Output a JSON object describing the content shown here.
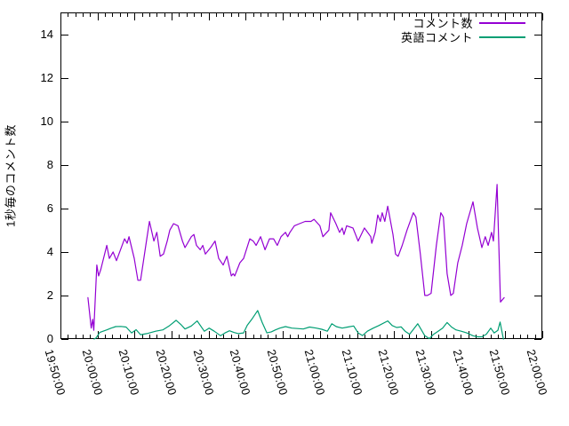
{
  "chart_data": {
    "type": "line",
    "title": "",
    "xlabel": "",
    "ylabel": "1秒毎のコメント数",
    "background": "#ffffff",
    "axis_color": "#000000",
    "grid": false,
    "legend_position": "top-right-inside",
    "x_unit": "minutes_after_19:50:00",
    "x_range_minutes": [
      0,
      130
    ],
    "x_major_step_minutes": 10,
    "x_minor_step_minutes": 2,
    "x_tick_labels": [
      "19:50:00",
      "20:00:00",
      "20:10:00",
      "20:20:00",
      "20:30:00",
      "20:40:00",
      "20:50:00",
      "21:00:00",
      "21:10:00",
      "21:20:00",
      "21:30:00",
      "21:40:00",
      "21:50:00",
      "22:00:00"
    ],
    "ylim": [
      0,
      15
    ],
    "y_ticks": [
      0,
      2,
      4,
      6,
      8,
      10,
      12,
      14
    ],
    "series": [
      {
        "name": "コメント数",
        "color": "#9400d3",
        "points": [
          [
            7.4,
            1.9
          ],
          [
            8.3,
            0.5
          ],
          [
            8.7,
            0.9
          ],
          [
            9.0,
            0.4
          ],
          [
            9.8,
            3.4
          ],
          [
            10.3,
            2.9
          ],
          [
            10.9,
            3.2
          ],
          [
            12.5,
            4.3
          ],
          [
            13.2,
            3.7
          ],
          [
            14.2,
            4.0
          ],
          [
            15.1,
            3.6
          ],
          [
            17.3,
            4.6
          ],
          [
            18.0,
            4.4
          ],
          [
            18.5,
            4.7
          ],
          [
            19.9,
            3.7
          ],
          [
            20.9,
            2.7
          ],
          [
            21.6,
            2.7
          ],
          [
            23.3,
            4.6
          ],
          [
            24.0,
            5.4
          ],
          [
            25.2,
            4.5
          ],
          [
            26.0,
            4.9
          ],
          [
            26.9,
            3.8
          ],
          [
            27.8,
            3.9
          ],
          [
            28.8,
            4.5
          ],
          [
            29.5,
            5.0
          ],
          [
            30.5,
            5.3
          ],
          [
            31.7,
            5.2
          ],
          [
            32.9,
            4.5
          ],
          [
            33.6,
            4.2
          ],
          [
            35.3,
            4.7
          ],
          [
            36.0,
            4.8
          ],
          [
            36.7,
            4.3
          ],
          [
            37.7,
            4.1
          ],
          [
            38.4,
            4.3
          ],
          [
            39.1,
            3.9
          ],
          [
            40.5,
            4.2
          ],
          [
            41.7,
            4.5
          ],
          [
            42.7,
            3.7
          ],
          [
            43.9,
            3.4
          ],
          [
            44.9,
            3.8
          ],
          [
            46.1,
            2.9
          ],
          [
            46.6,
            3.0
          ],
          [
            47.0,
            2.9
          ],
          [
            48.4,
            3.5
          ],
          [
            49.4,
            3.7
          ],
          [
            51.1,
            4.6
          ],
          [
            52.0,
            4.5
          ],
          [
            52.8,
            4.3
          ],
          [
            54.0,
            4.7
          ],
          [
            55.2,
            4.1
          ],
          [
            56.4,
            4.6
          ],
          [
            57.5,
            4.6
          ],
          [
            58.5,
            4.3
          ],
          [
            59.5,
            4.7
          ],
          [
            60.7,
            4.9
          ],
          [
            61.3,
            4.7
          ],
          [
            61.9,
            4.9
          ],
          [
            63.1,
            5.2
          ],
          [
            64.5,
            5.3
          ],
          [
            66.0,
            5.4
          ],
          [
            67.6,
            5.4
          ],
          [
            68.4,
            5.5
          ],
          [
            70.0,
            5.2
          ],
          [
            70.8,
            4.7
          ],
          [
            72.4,
            5.0
          ],
          [
            72.9,
            5.8
          ],
          [
            74.3,
            5.3
          ],
          [
            75.3,
            4.9
          ],
          [
            76.0,
            5.1
          ],
          [
            76.5,
            4.8
          ],
          [
            77.2,
            5.2
          ],
          [
            78.9,
            5.1
          ],
          [
            79.6,
            4.8
          ],
          [
            80.3,
            4.5
          ],
          [
            82.0,
            5.1
          ],
          [
            83.7,
            4.7
          ],
          [
            84.0,
            4.4
          ],
          [
            84.9,
            4.9
          ],
          [
            85.6,
            5.7
          ],
          [
            86.3,
            5.4
          ],
          [
            86.8,
            5.8
          ],
          [
            87.5,
            5.4
          ],
          [
            88.3,
            6.1
          ],
          [
            89.7,
            4.8
          ],
          [
            90.4,
            3.9
          ],
          [
            91.1,
            3.8
          ],
          [
            92.2,
            4.3
          ],
          [
            93.5,
            5.0
          ],
          [
            95.2,
            5.8
          ],
          [
            95.9,
            5.6
          ],
          [
            97.1,
            3.9
          ],
          [
            98.3,
            2.0
          ],
          [
            99.0,
            2.0
          ],
          [
            100.0,
            2.1
          ],
          [
            101.4,
            4.3
          ],
          [
            102.6,
            5.8
          ],
          [
            103.3,
            5.6
          ],
          [
            104.3,
            3.0
          ],
          [
            105.3,
            2.0
          ],
          [
            106.0,
            2.1
          ],
          [
            107.2,
            3.5
          ],
          [
            108.4,
            4.3
          ],
          [
            109.6,
            5.3
          ],
          [
            111.3,
            6.3
          ],
          [
            112.5,
            5.1
          ],
          [
            113.7,
            4.2
          ],
          [
            114.6,
            4.7
          ],
          [
            115.4,
            4.3
          ],
          [
            116.3,
            4.9
          ],
          [
            116.8,
            4.5
          ],
          [
            117.8,
            7.1
          ],
          [
            118.7,
            1.7
          ],
          [
            119.7,
            1.9
          ]
        ]
      },
      {
        "name": "英語コメント",
        "color": "#009e73",
        "points": [
          [
            9.1,
            0.0
          ],
          [
            9.6,
            0.05
          ],
          [
            10.6,
            0.3
          ],
          [
            12.5,
            0.42
          ],
          [
            13.7,
            0.5
          ],
          [
            14.9,
            0.57
          ],
          [
            16.3,
            0.58
          ],
          [
            17.7,
            0.55
          ],
          [
            19.2,
            0.28
          ],
          [
            20.4,
            0.43
          ],
          [
            21.6,
            0.2
          ],
          [
            23.3,
            0.25
          ],
          [
            25.7,
            0.36
          ],
          [
            27.6,
            0.42
          ],
          [
            29.3,
            0.6
          ],
          [
            31.2,
            0.86
          ],
          [
            32.6,
            0.65
          ],
          [
            33.6,
            0.46
          ],
          [
            35.3,
            0.6
          ],
          [
            36.9,
            0.83
          ],
          [
            38.8,
            0.36
          ],
          [
            40.1,
            0.5
          ],
          [
            41.5,
            0.36
          ],
          [
            43.2,
            0.15
          ],
          [
            44.4,
            0.28
          ],
          [
            45.6,
            0.38
          ],
          [
            46.8,
            0.3
          ],
          [
            48.0,
            0.25
          ],
          [
            49.4,
            0.28
          ],
          [
            50.4,
            0.63
          ],
          [
            51.6,
            0.9
          ],
          [
            53.2,
            1.31
          ],
          [
            54.4,
            0.77
          ],
          [
            55.7,
            0.28
          ],
          [
            56.9,
            0.33
          ],
          [
            58.0,
            0.42
          ],
          [
            59.2,
            0.5
          ],
          [
            60.7,
            0.57
          ],
          [
            62.4,
            0.5
          ],
          [
            64.0,
            0.48
          ],
          [
            65.5,
            0.46
          ],
          [
            67.2,
            0.55
          ],
          [
            69.0,
            0.5
          ],
          [
            70.5,
            0.45
          ],
          [
            72.0,
            0.36
          ],
          [
            73.2,
            0.7
          ],
          [
            74.4,
            0.57
          ],
          [
            76.0,
            0.5
          ],
          [
            77.5,
            0.55
          ],
          [
            79.1,
            0.6
          ],
          [
            80.3,
            0.28
          ],
          [
            81.5,
            0.16
          ],
          [
            82.8,
            0.36
          ],
          [
            84.4,
            0.5
          ],
          [
            85.9,
            0.62
          ],
          [
            88.3,
            0.83
          ],
          [
            89.5,
            0.62
          ],
          [
            90.7,
            0.53
          ],
          [
            91.9,
            0.56
          ],
          [
            93.0,
            0.36
          ],
          [
            94.2,
            0.22
          ],
          [
            96.4,
            0.7
          ],
          [
            97.1,
            0.5
          ],
          [
            98.3,
            0.15
          ],
          [
            99.5,
            0.02
          ],
          [
            100.7,
            0.22
          ],
          [
            101.9,
            0.36
          ],
          [
            103.1,
            0.5
          ],
          [
            104.3,
            0.76
          ],
          [
            105.5,
            0.55
          ],
          [
            106.7,
            0.42
          ],
          [
            108.1,
            0.36
          ],
          [
            109.6,
            0.28
          ],
          [
            111.3,
            0.15
          ],
          [
            112.5,
            0.1
          ],
          [
            113.7,
            0.1
          ],
          [
            114.9,
            0.22
          ],
          [
            116.1,
            0.5
          ],
          [
            117.0,
            0.28
          ],
          [
            118.0,
            0.4
          ],
          [
            118.6,
            0.78
          ],
          [
            119.5,
            0.0
          ]
        ]
      }
    ]
  }
}
